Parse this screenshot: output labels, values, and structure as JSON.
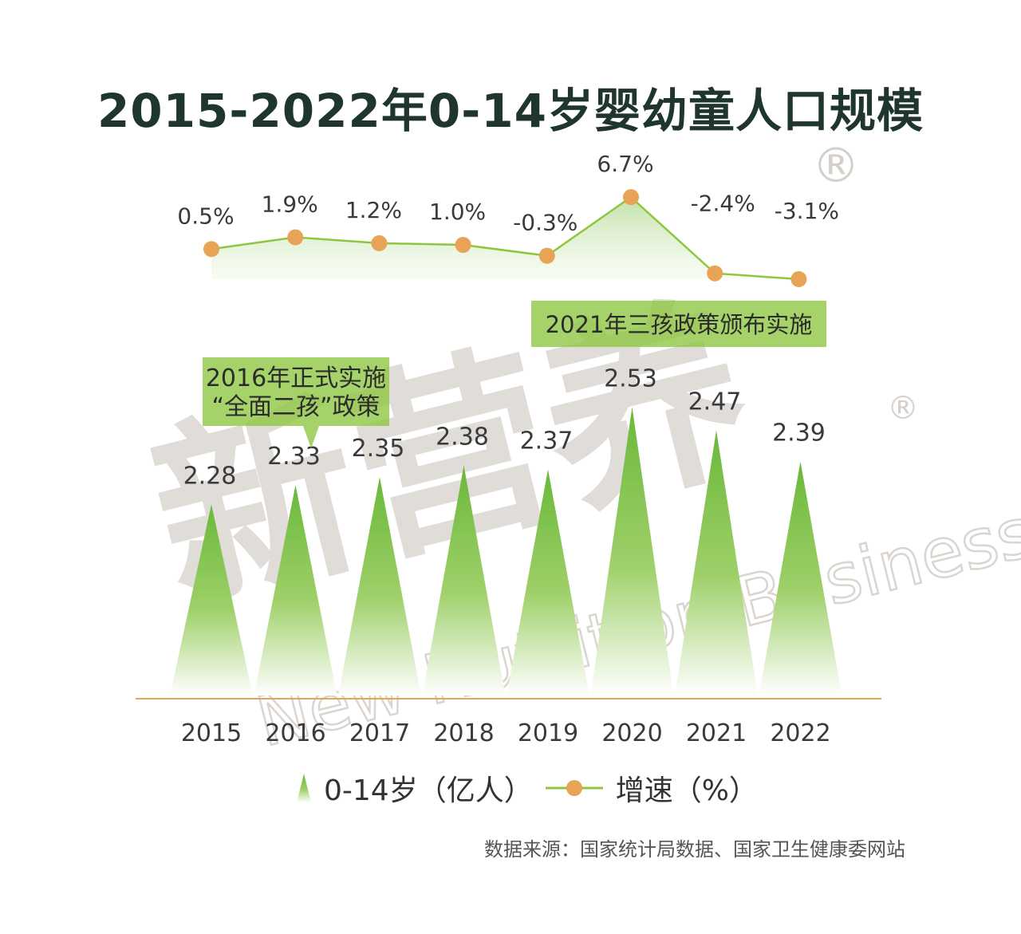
{
  "title": "2015-2022年0-14岁婴幼童人口规模",
  "source": "数据来源：国家统计局数据、国家卫生健康委网站",
  "colors": {
    "growth_line": "#8dc63f",
    "growth_dot": "#e8a456",
    "bar_top": "#6ab83a",
    "bar_bottom": "#ffffff",
    "axis": "#e8a456",
    "callout_bg": "#8dc63f",
    "watermark": "#d6d0cb"
  },
  "watermark": {
    "cn": "新营养",
    "en": "New Nutrition Business",
    "mark": "®"
  },
  "legend": [
    {
      "icon": "green-cone-icon",
      "label": "0-14岁（亿人）"
    },
    {
      "icon": "line-dot-icon",
      "label": "增速（%）"
    }
  ],
  "annotations": [
    {
      "lines": [
        "2016年正式实施",
        "“全面二孩”政策"
      ],
      "year": "2016"
    },
    {
      "lines": [
        "2021年三孩政策颁布实施"
      ],
      "year": "2021"
    }
  ],
  "chart_data": {
    "type": "bar",
    "categories": [
      "2015",
      "2016",
      "2017",
      "2018",
      "2019",
      "2020",
      "2021",
      "2022"
    ],
    "series": [
      {
        "name": "0-14岁（亿人）",
        "kind": "cone-bar",
        "values": [
          2.28,
          2.33,
          2.35,
          2.38,
          2.37,
          2.53,
          2.47,
          2.39
        ],
        "labels": [
          "2.28",
          "2.33",
          "2.35",
          "2.38",
          "2.37",
          "2.53",
          "2.47",
          "2.39"
        ]
      },
      {
        "name": "增速（%）",
        "kind": "line",
        "values": [
          0.5,
          1.9,
          1.2,
          1.0,
          -0.3,
          6.7,
          -2.4,
          -3.1
        ],
        "labels": [
          "0.5%",
          "1.9%",
          "1.2%",
          "1.0%",
          "-0.3%",
          "6.7%",
          "-2.4%",
          "-3.1%"
        ]
      }
    ],
    "legend_position": "bottom",
    "grid": false
  }
}
